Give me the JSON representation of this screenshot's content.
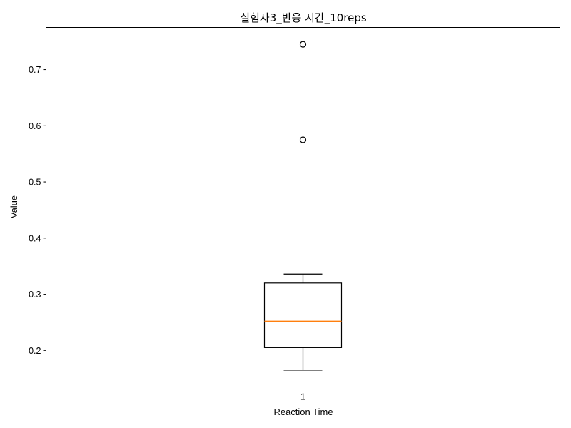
{
  "chart_data": {
    "type": "box",
    "title": "실험자3_반응 시간_10reps",
    "xlabel": "Reaction Time",
    "ylabel": "Value",
    "categories": [
      "1"
    ],
    "ylim": [
      0.135,
      0.775
    ],
    "yticks": [
      0.2,
      0.3,
      0.4,
      0.5,
      0.6,
      0.7
    ],
    "ytick_labels": [
      "0.2",
      "0.3",
      "0.4",
      "0.5",
      "0.6",
      "0.7"
    ],
    "xlim": [
      0.5,
      1.5
    ],
    "grid": false,
    "boxes": [
      {
        "label": "1",
        "whisker_low": 0.165,
        "q1": 0.205,
        "median": 0.252,
        "q3": 0.32,
        "whisker_high": 0.336,
        "fliers": [
          0.575,
          0.745
        ]
      }
    ],
    "colors": {
      "median": "#ff7f0e",
      "box": "#000000"
    }
  }
}
